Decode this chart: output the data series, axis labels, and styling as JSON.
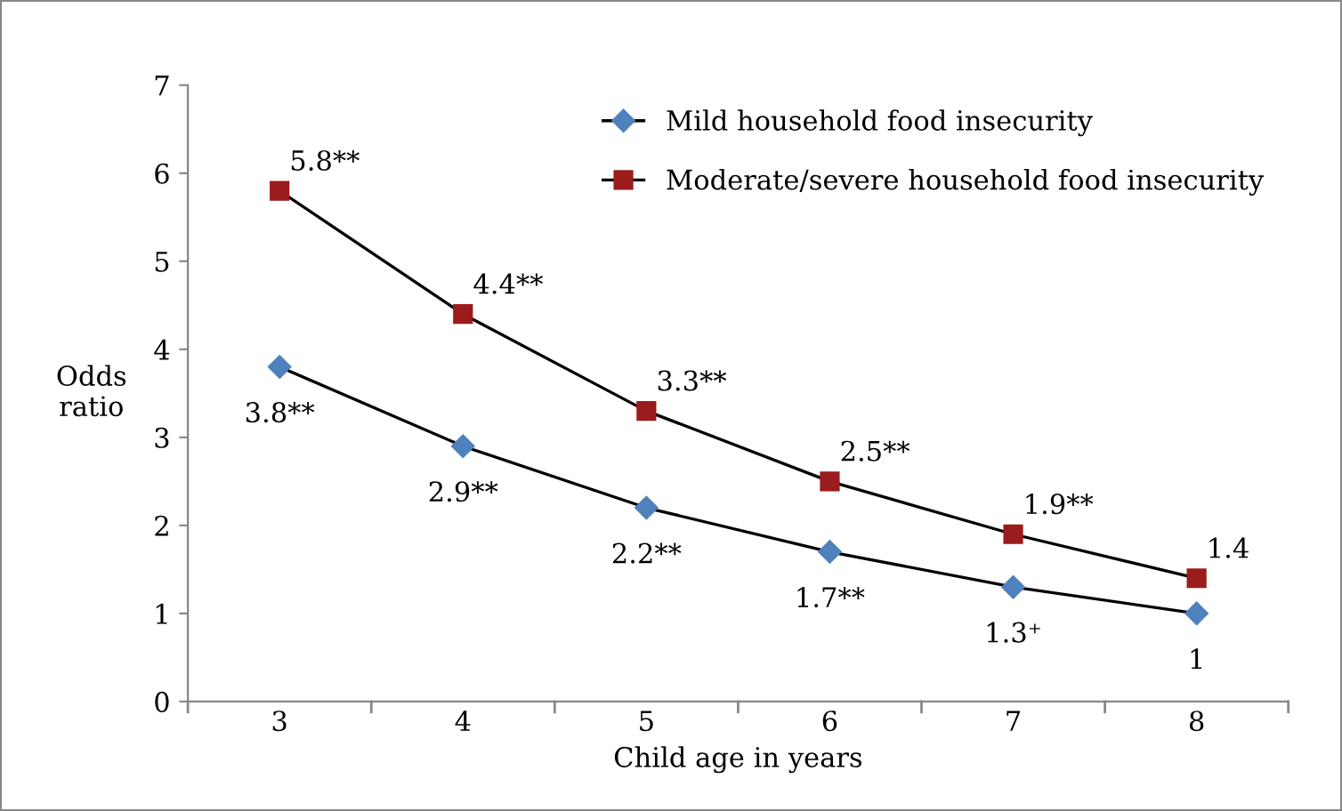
{
  "chart_data": {
    "type": "line",
    "xlabel": "Child age in years",
    "ylabel": "Odds\nratio",
    "categories": [
      "3",
      "4",
      "5",
      "6",
      "7",
      "8"
    ],
    "series": [
      {
        "name": "Mild household food insecurity",
        "color": "#4f81bd",
        "marker": "diamond",
        "values": [
          3.8,
          2.9,
          2.2,
          1.7,
          1.3,
          1
        ],
        "value_labels": [
          "3.8**",
          "2.9**",
          "2.2**",
          "1.7**",
          "1.3⁺",
          "1"
        ]
      },
      {
        "name": "Moderate/severe household food insecurity",
        "color": "#9b1c1c",
        "marker": "square",
        "values": [
          5.8,
          4.4,
          3.3,
          2.5,
          1.9,
          1.4
        ],
        "value_labels": [
          "5.8**",
          "4.4**",
          "3.3**",
          "2.5**",
          "1.9**",
          "1.4"
        ]
      }
    ],
    "ylim": [
      0,
      7
    ],
    "yticks": [
      0,
      1,
      2,
      3,
      4,
      5,
      6,
      7
    ],
    "grid": false,
    "legend": "top right",
    "line_style": "solid"
  }
}
